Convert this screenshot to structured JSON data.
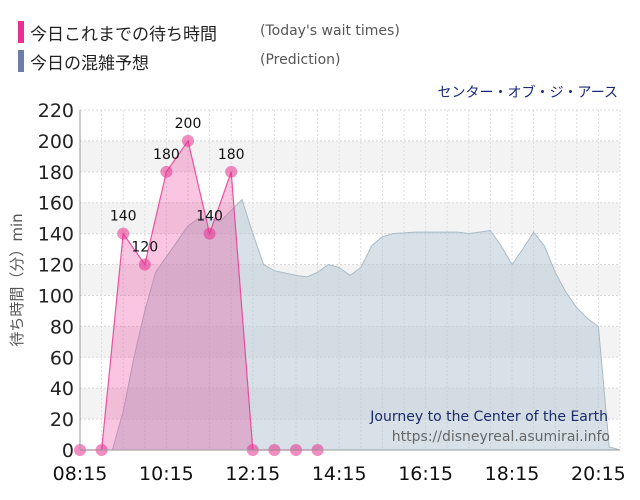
{
  "legend": {
    "actual": {
      "label_jp": "今日これまでの待ち時間",
      "label_en": "(Today's wait times)",
      "color": "#e8308f"
    },
    "predicted": {
      "label_jp": "今日の混雑予想",
      "label_en": "(Prediction)",
      "color": "#6b7fa6"
    }
  },
  "chart_data": {
    "type": "area",
    "title": "センター・オブ・ジ・アース",
    "ylabel": "待ち時間（分）min",
    "xlabel": "",
    "ylim": [
      0,
      220
    ],
    "yticks": [
      0,
      20,
      40,
      60,
      80,
      100,
      120,
      140,
      160,
      180,
      200,
      220
    ],
    "xlim": [
      "08:15",
      "20:45"
    ],
    "xticks": [
      "08:15",
      "10:15",
      "12:15",
      "14:15",
      "16:15",
      "18:15",
      "20:15"
    ],
    "grid": true,
    "annotations": [
      "Journey to the Center of the Earth",
      "https://disneyreal.asumirai.info"
    ],
    "series": [
      {
        "name": "今日の混雑予想",
        "color": "#6b7fa6",
        "points": [
          [
            "08:15",
            0
          ],
          [
            "08:45",
            0
          ],
          [
            "09:00",
            0
          ],
          [
            "09:15",
            25
          ],
          [
            "09:30",
            60
          ],
          [
            "09:45",
            90
          ],
          [
            "10:00",
            115
          ],
          [
            "10:15",
            125
          ],
          [
            "10:30",
            135
          ],
          [
            "10:45",
            145
          ],
          [
            "11:00",
            150
          ],
          [
            "11:15",
            150
          ],
          [
            "11:30",
            148
          ],
          [
            "11:45",
            155
          ],
          [
            "12:00",
            162
          ],
          [
            "12:15",
            140
          ],
          [
            "12:30",
            120
          ],
          [
            "12:45",
            116
          ],
          [
            "13:15",
            113
          ],
          [
            "13:30",
            112
          ],
          [
            "13:45",
            115
          ],
          [
            "14:00",
            120
          ],
          [
            "14:15",
            118
          ],
          [
            "14:30",
            113
          ],
          [
            "14:45",
            118
          ],
          [
            "15:00",
            132
          ],
          [
            "15:15",
            138
          ],
          [
            "15:30",
            140
          ],
          [
            "16:00",
            141
          ],
          [
            "17:00",
            141
          ],
          [
            "17:15",
            140
          ],
          [
            "17:45",
            142
          ],
          [
            "18:00",
            132
          ],
          [
            "18:15",
            120
          ],
          [
            "18:30",
            130
          ],
          [
            "18:45",
            141
          ],
          [
            "19:00",
            132
          ],
          [
            "19:15",
            115
          ],
          [
            "19:30",
            102
          ],
          [
            "19:45",
            92
          ],
          [
            "20:00",
            85
          ],
          [
            "20:15",
            80
          ],
          [
            "20:30",
            2
          ],
          [
            "20:45",
            0
          ]
        ]
      },
      {
        "name": "今日これまでの待ち時間",
        "color": "#e8308f",
        "points": [
          [
            "08:15",
            0
          ],
          [
            "08:45",
            0
          ],
          [
            "09:15",
            140
          ],
          [
            "09:45",
            120
          ],
          [
            "10:15",
            180
          ],
          [
            "10:45",
            200
          ],
          [
            "11:15",
            140
          ],
          [
            "11:45",
            180
          ],
          [
            "12:15",
            0
          ],
          [
            "12:45",
            0
          ],
          [
            "13:15",
            0
          ],
          [
            "13:45",
            0
          ]
        ],
        "point_labels": [
          [
            "09:15",
            "140"
          ],
          [
            "09:45",
            "120"
          ],
          [
            "10:15",
            "180"
          ],
          [
            "10:45",
            "200"
          ],
          [
            "11:15",
            "140"
          ],
          [
            "11:45",
            "180"
          ]
        ]
      }
    ]
  }
}
